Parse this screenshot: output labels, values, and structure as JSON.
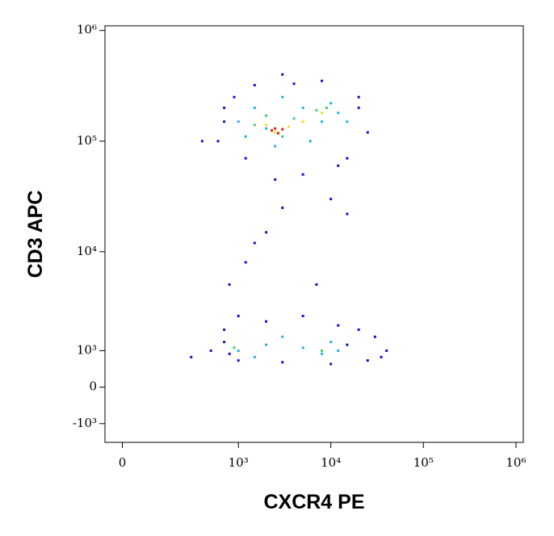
{
  "chart_data": {
    "type": "scatter",
    "scale": "biexponential",
    "xlabel": "CXCR4  PE",
    "ylabel": "CD3 APC",
    "xlim": [
      -50,
      1200000
    ],
    "ylim": [
      -1700,
      1100000
    ],
    "xticks": [
      0,
      {
        "value": 1000,
        "label": "10³"
      },
      {
        "value": 10000,
        "label": "10⁴"
      },
      {
        "value": 100000,
        "label": "10⁵"
      },
      {
        "value": 1000000,
        "label": "10⁶"
      }
    ],
    "yticks": [
      {
        "value": -1000,
        "label": "-10³"
      },
      0,
      {
        "value": 1000,
        "label": "10³"
      },
      {
        "value": 10000,
        "label": "10⁴"
      },
      {
        "value": 100000,
        "label": "10⁵"
      },
      {
        "value": 1000000,
        "label": "10⁶"
      }
    ],
    "series": [
      {
        "color": "#1010d0",
        "x": [
          700,
          900,
          1500,
          3000,
          8000,
          20000,
          25000,
          15000,
          5000,
          1200,
          600,
          2500,
          10000,
          400,
          20000,
          4000,
          700,
          12000,
          3000,
          15000,
          1200,
          800,
          1500,
          7000,
          2000,
          500,
          700,
          1000,
          2000,
          5000,
          12000,
          30000,
          40000,
          25000,
          10000,
          3000,
          1000,
          700,
          15000,
          20000,
          800,
          300,
          35000
        ],
        "y": [
          150000,
          250000,
          320000,
          400000,
          350000,
          200000,
          120000,
          70000,
          50000,
          70000,
          100000,
          45000,
          30000,
          100000,
          250000,
          330000,
          200000,
          60000,
          25000,
          22000,
          8000,
          5000,
          12000,
          5000,
          15000,
          1000,
          1800,
          2500,
          2200,
          2500,
          2000,
          1500,
          1000,
          700,
          600,
          650,
          700,
          1300,
          1200,
          1800,
          900,
          800,
          800
        ]
      },
      {
        "color": "#20b0e8",
        "x": [
          1000,
          1500,
          2000,
          3000,
          5000,
          8000,
          10000,
          12000,
          1200,
          6000,
          2500,
          15000,
          1000,
          2000,
          5000,
          8000,
          12000,
          1500,
          3000,
          10000
        ],
        "y": [
          150000,
          200000,
          130000,
          250000,
          200000,
          150000,
          220000,
          180000,
          110000,
          100000,
          90000,
          150000,
          1000,
          1200,
          1100,
          900,
          1000,
          800,
          1500,
          1300
        ]
      },
      {
        "color": "#40d070",
        "x": [
          1500,
          2000,
          4000,
          7000,
          9000,
          3000,
          900,
          8000
        ],
        "y": [
          140000,
          170000,
          160000,
          190000,
          200000,
          110000,
          1100,
          1000
        ]
      },
      {
        "color": "#e8e020",
        "x": [
          2000,
          2500,
          3500,
          5000,
          8000
        ],
        "y": [
          140000,
          120000,
          135000,
          150000,
          180000
        ]
      },
      {
        "color": "#e02010",
        "x": [
          2300,
          2700,
          3000,
          2500
        ],
        "y": [
          125000,
          118000,
          128000,
          130000
        ]
      }
    ]
  }
}
